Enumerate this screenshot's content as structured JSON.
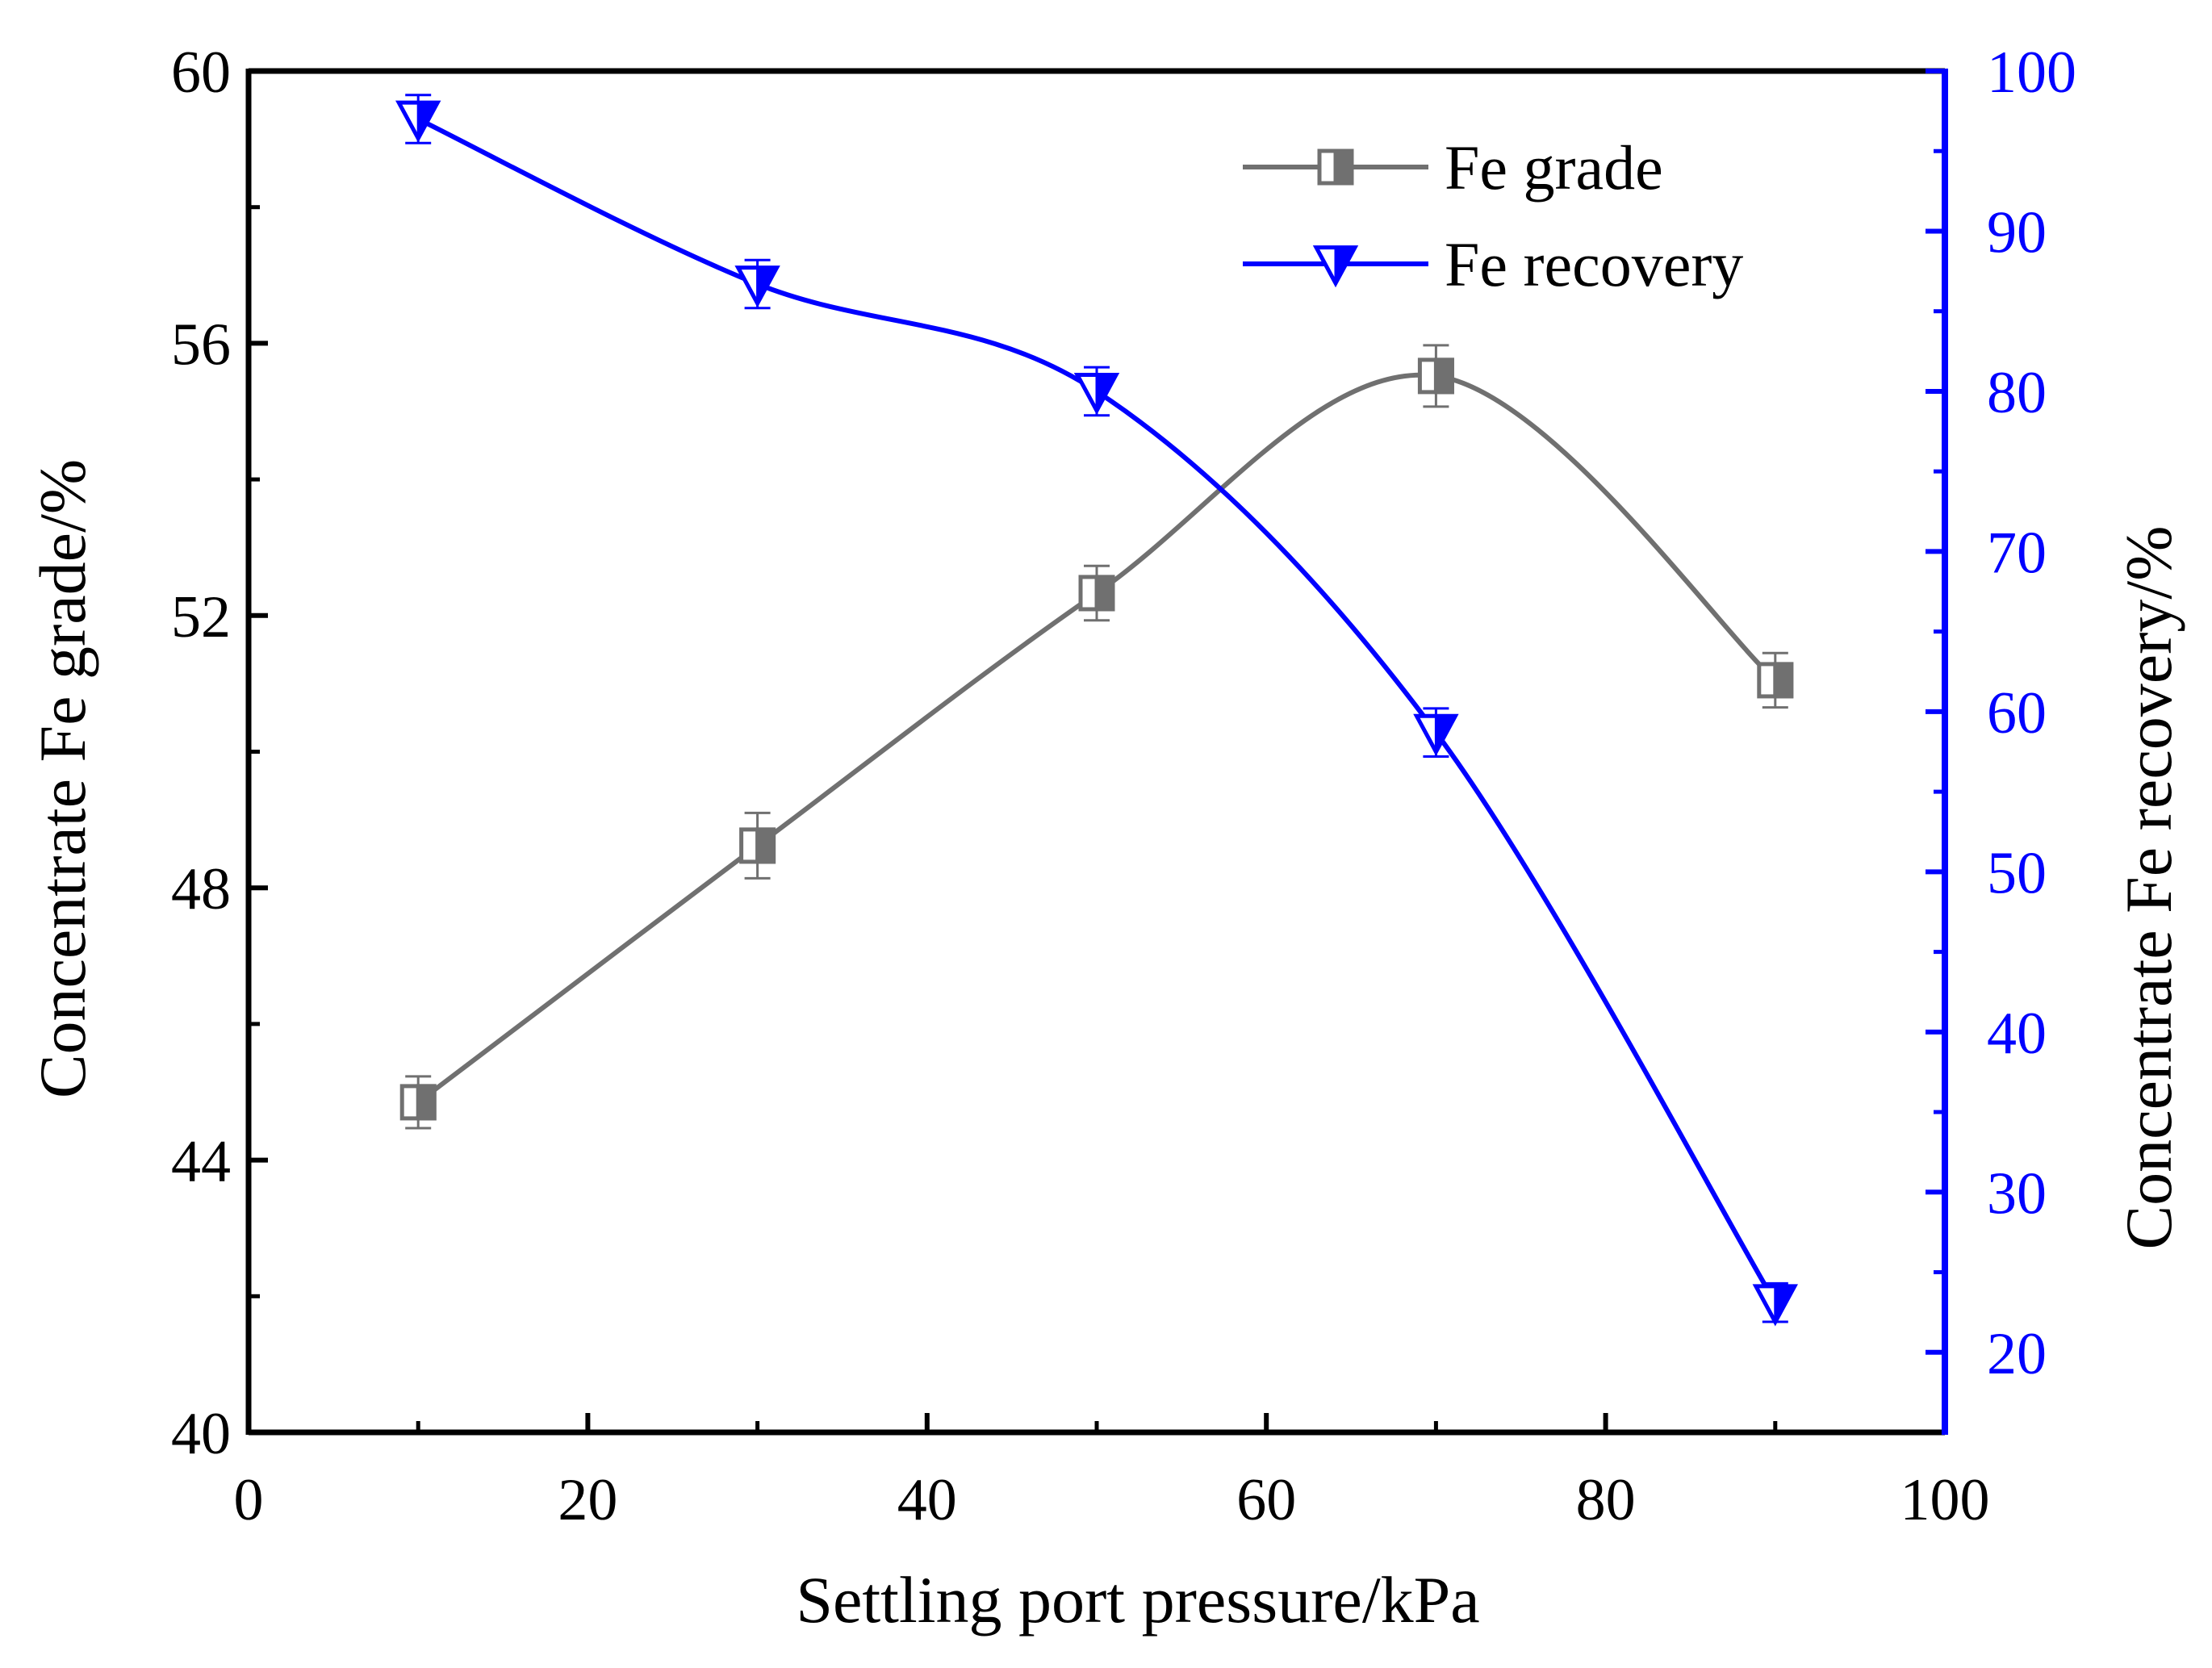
{
  "chart_data": {
    "type": "line",
    "title": "",
    "xlabel": "Settling port pressure/kPa",
    "ylabel_left": "Concentrate Fe grade/%",
    "ylabel_right": "Concentrate Fe recovery/%",
    "xlim": [
      0,
      100
    ],
    "ylim_left": [
      40,
      60
    ],
    "ylim_right": [
      15,
      100
    ],
    "x_ticks": [
      "0",
      "20",
      "40",
      "60",
      "80",
      "100"
    ],
    "y_left_ticks": [
      "40",
      "44",
      "48",
      "52",
      "56",
      "60"
    ],
    "y_right_ticks": [
      "20",
      "30",
      "40",
      "50",
      "60",
      "70",
      "80",
      "90",
      "100"
    ],
    "x": [
      10,
      30,
      50,
      70,
      90
    ],
    "series": [
      {
        "name": "Fe grade",
        "axis": "left",
        "color": "#707070",
        "marker": "half-filled-square",
        "values": [
          44.85,
          48.62,
          52.33,
          55.52,
          51.05
        ],
        "errors": [
          0.38,
          0.48,
          0.4,
          0.45,
          0.4
        ]
      },
      {
        "name": "Fe recovery",
        "axis": "right",
        "color": "#0000ff",
        "marker": "half-filled-down-triangle",
        "values": [
          97.0,
          86.7,
          80.0,
          58.7,
          23.1
        ],
        "errors": [
          1.5,
          1.5,
          1.5,
          1.5,
          1.2
        ]
      }
    ],
    "legend_position": "top-right",
    "grid": false
  },
  "colors": {
    "axis_left": "#000000",
    "axis_right": "#0000ff",
    "grade_line": "#707070",
    "recovery_line": "#0000ff"
  }
}
